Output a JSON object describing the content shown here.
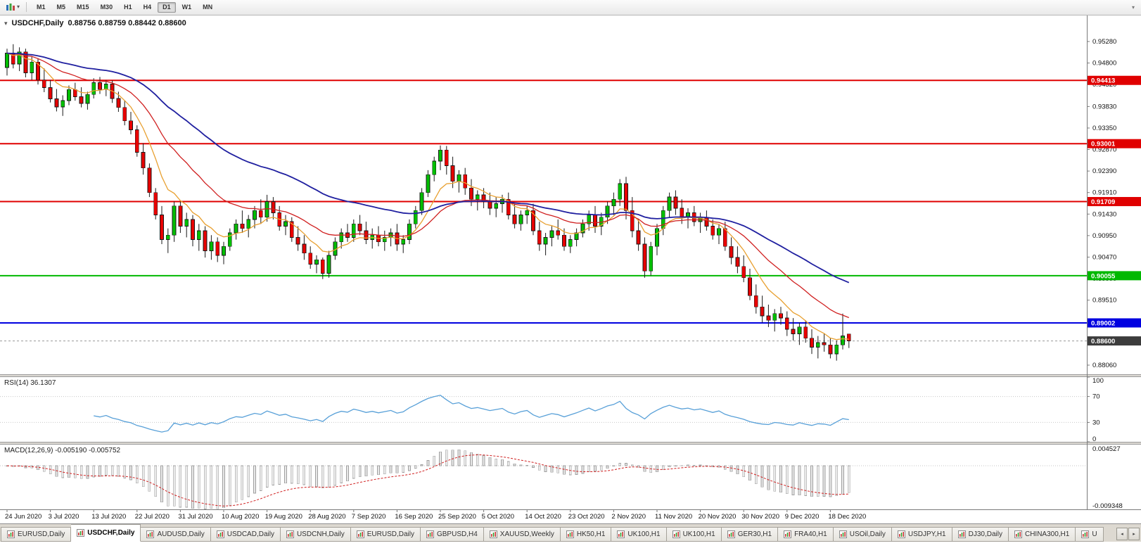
{
  "toolbar": {
    "timeframes": [
      "M1",
      "M5",
      "M15",
      "M30",
      "H1",
      "H4",
      "D1",
      "W1",
      "MN"
    ],
    "active_timeframe": "D1"
  },
  "icons": {
    "one_click": "▾",
    "toolbar_caret": "▾",
    "overflow_caret": "▾",
    "tab_scroll_left": "◂",
    "tab_scroll_right": "▸"
  },
  "chart": {
    "title_symbol": "USDCHF,Daily",
    "title_ohlc": "0.88756 0.88759 0.88442 0.88600",
    "rsi_text": "RSI(14) 36.1307",
    "macd_text": "MACD(12,26,9) -0.005190 -0.005752"
  },
  "chart_data": {
    "type": "candlestick",
    "symbol": "USDCHF",
    "period": "Daily",
    "up_color": "#00BE00",
    "down_color": "#E80000",
    "outline_color": "#1a1a1a",
    "price_axis_labels": [
      "0.95280",
      "0.94800",
      "0.94320",
      "0.93830",
      "0.93350",
      "0.92870",
      "0.92390",
      "0.91910",
      "0.91430",
      "0.90950",
      "0.90470",
      "0.89990",
      "0.89510",
      "0.89030",
      "0.88550",
      "0.88060"
    ],
    "date_ticks": [
      "24 Jun 2020",
      "3 Jul 2020",
      "13 Jul 2020",
      "22 Jul 2020",
      "31 Jul 2020",
      "10 Aug 2020",
      "19 Aug 2020",
      "28 Aug 2020",
      "7 Sep 2020",
      "16 Sep 2020",
      "25 Sep 2020",
      "5 Oct 2020",
      "14 Oct 2020",
      "23 Oct 2020",
      "2 Nov 2020",
      "11 Nov 2020",
      "20 Nov 2020",
      "30 Nov 2020",
      "9 Dec 2020",
      "18 Dec 2020"
    ],
    "candles_per_tick": 7,
    "levels": [
      {
        "price": 0.94413,
        "label": "0.94413",
        "color": "#E00000"
      },
      {
        "price": 0.93001,
        "label": "0.93001",
        "color": "#E00000"
      },
      {
        "price": 0.91709,
        "label": "0.91709",
        "color": "#E00000"
      },
      {
        "price": 0.90055,
        "label": "0.90055",
        "color": "#00B800"
      },
      {
        "price": 0.89002,
        "label": "0.89002",
        "color": "#0000E0"
      }
    ],
    "current_price": {
      "price": 0.886,
      "label": "0.88600",
      "color": "#3C3C3C"
    },
    "moving_averages": [
      {
        "period": 8,
        "color": "#E8A030"
      },
      {
        "period": 20,
        "color": "#D02020"
      },
      {
        "period": 45,
        "color": "#2020A0"
      }
    ],
    "candles": [
      [
        0.947,
        0.9512,
        0.9452,
        0.9502
      ],
      [
        0.9502,
        0.9522,
        0.9468,
        0.9478
      ],
      [
        0.9478,
        0.9515,
        0.9462,
        0.9505
      ],
      [
        0.9505,
        0.9512,
        0.9448,
        0.9458
      ],
      [
        0.9458,
        0.9495,
        0.9442,
        0.9482
      ],
      [
        0.9482,
        0.949,
        0.9432,
        0.9442
      ],
      [
        0.9442,
        0.9468,
        0.9415,
        0.9425
      ],
      [
        0.9425,
        0.9442,
        0.9392,
        0.94
      ],
      [
        0.94,
        0.9422,
        0.9372,
        0.9382
      ],
      [
        0.9382,
        0.9408,
        0.9362,
        0.9396
      ],
      [
        0.9396,
        0.943,
        0.9386,
        0.9421
      ],
      [
        0.9421,
        0.9436,
        0.9396,
        0.9405
      ],
      [
        0.9405,
        0.9426,
        0.9381,
        0.939
      ],
      [
        0.939,
        0.9416,
        0.9376,
        0.941
      ],
      [
        0.941,
        0.9446,
        0.9401,
        0.9436
      ],
      [
        0.9436,
        0.9449,
        0.9411,
        0.9421
      ],
      [
        0.9421,
        0.9442,
        0.9406,
        0.9433
      ],
      [
        0.9433,
        0.9441,
        0.9391,
        0.9401
      ],
      [
        0.9401,
        0.9416,
        0.9371,
        0.9381
      ],
      [
        0.9381,
        0.9396,
        0.9341,
        0.9351
      ],
      [
        0.9351,
        0.9371,
        0.9321,
        0.9331
      ],
      [
        0.9331,
        0.9341,
        0.9271,
        0.9281
      ],
      [
        0.9281,
        0.9301,
        0.9231,
        0.9246
      ],
      [
        0.9246,
        0.9256,
        0.9181,
        0.9191
      ],
      [
        0.9191,
        0.9201,
        0.9131,
        0.9141
      ],
      [
        0.9141,
        0.9161,
        0.9076,
        0.9086
      ],
      [
        0.9086,
        0.9111,
        0.9056,
        0.9096
      ],
      [
        0.9096,
        0.9171,
        0.9081,
        0.9161
      ],
      [
        0.9161,
        0.9171,
        0.9101,
        0.9116
      ],
      [
        0.9116,
        0.9146,
        0.9091,
        0.9131
      ],
      [
        0.9131,
        0.9141,
        0.9071,
        0.9086
      ],
      [
        0.9086,
        0.9121,
        0.9061,
        0.9106
      ],
      [
        0.9106,
        0.9116,
        0.9046,
        0.9061
      ],
      [
        0.9061,
        0.9096,
        0.9041,
        0.9081
      ],
      [
        0.9081,
        0.9091,
        0.9036,
        0.9051
      ],
      [
        0.9051,
        0.9081,
        0.9031,
        0.9071
      ],
      [
        0.9071,
        0.9111,
        0.9061,
        0.9101
      ],
      [
        0.9101,
        0.9131,
        0.9086,
        0.9121
      ],
      [
        0.9121,
        0.9151,
        0.9101,
        0.9111
      ],
      [
        0.9111,
        0.9141,
        0.9091,
        0.9131
      ],
      [
        0.9131,
        0.9161,
        0.9111,
        0.9151
      ],
      [
        0.9151,
        0.9176,
        0.9121,
        0.9136
      ],
      [
        0.9136,
        0.9186,
        0.9126,
        0.9171
      ],
      [
        0.9171,
        0.9181,
        0.9131,
        0.9146
      ],
      [
        0.9146,
        0.9161,
        0.9106,
        0.9116
      ],
      [
        0.9116,
        0.9141,
        0.9096,
        0.9126
      ],
      [
        0.9126,
        0.9136,
        0.9081,
        0.9091
      ],
      [
        0.9091,
        0.9116,
        0.9061,
        0.9076
      ],
      [
        0.9076,
        0.9096,
        0.9041,
        0.9056
      ],
      [
        0.9056,
        0.9071,
        0.9021,
        0.9031
      ],
      [
        0.9031,
        0.9051,
        0.9011,
        0.9041
      ],
      [
        0.9041,
        0.9046,
        0.8998,
        0.9011
      ],
      [
        0.9011,
        0.9061,
        0.9001,
        0.9051
      ],
      [
        0.9051,
        0.9091,
        0.9041,
        0.9081
      ],
      [
        0.9081,
        0.9111,
        0.9066,
        0.9101
      ],
      [
        0.9101,
        0.9121,
        0.9081,
        0.9091
      ],
      [
        0.9091,
        0.9131,
        0.9081,
        0.9121
      ],
      [
        0.9121,
        0.9141,
        0.9096,
        0.9106
      ],
      [
        0.9106,
        0.9126,
        0.9076,
        0.9086
      ],
      [
        0.9086,
        0.9111,
        0.9066,
        0.9096
      ],
      [
        0.9096,
        0.9116,
        0.9071,
        0.9081
      ],
      [
        0.9081,
        0.9106,
        0.9061,
        0.9091
      ],
      [
        0.9091,
        0.9111,
        0.9071,
        0.9101
      ],
      [
        0.9101,
        0.9121,
        0.9061,
        0.9076
      ],
      [
        0.9076,
        0.9096,
        0.9056,
        0.9086
      ],
      [
        0.9086,
        0.9131,
        0.9076,
        0.9121
      ],
      [
        0.9121,
        0.9161,
        0.9111,
        0.9151
      ],
      [
        0.9151,
        0.9201,
        0.9141,
        0.9191
      ],
      [
        0.9191,
        0.9241,
        0.9181,
        0.9231
      ],
      [
        0.9231,
        0.9271,
        0.9216,
        0.9261
      ],
      [
        0.9261,
        0.9296,
        0.9241,
        0.9286
      ],
      [
        0.9286,
        0.9295,
        0.9231,
        0.9251
      ],
      [
        0.9251,
        0.9271,
        0.9201,
        0.9216
      ],
      [
        0.9216,
        0.9241,
        0.9191,
        0.9231
      ],
      [
        0.9231,
        0.9246,
        0.9186,
        0.9201
      ],
      [
        0.9201,
        0.9221,
        0.9161,
        0.9176
      ],
      [
        0.9176,
        0.9196,
        0.9151,
        0.9186
      ],
      [
        0.9186,
        0.9201,
        0.9156,
        0.9171
      ],
      [
        0.9171,
        0.9191,
        0.9141,
        0.9156
      ],
      [
        0.9156,
        0.9181,
        0.9136,
        0.9166
      ],
      [
        0.9166,
        0.9186,
        0.9146,
        0.9176
      ],
      [
        0.9176,
        0.9191,
        0.9131,
        0.9141
      ],
      [
        0.9141,
        0.9166,
        0.9111,
        0.9121
      ],
      [
        0.9121,
        0.9151,
        0.9106,
        0.9141
      ],
      [
        0.9141,
        0.9161,
        0.9121,
        0.9151
      ],
      [
        0.9151,
        0.9166,
        0.9096,
        0.9106
      ],
      [
        0.9106,
        0.9126,
        0.9061,
        0.9076
      ],
      [
        0.9076,
        0.9101,
        0.9051,
        0.9091
      ],
      [
        0.9091,
        0.9116,
        0.9071,
        0.9106
      ],
      [
        0.9106,
        0.9131,
        0.9086,
        0.9096
      ],
      [
        0.9096,
        0.9111,
        0.9061,
        0.9071
      ],
      [
        0.9071,
        0.9096,
        0.9056,
        0.9086
      ],
      [
        0.9086,
        0.9111,
        0.9071,
        0.9101
      ],
      [
        0.9101,
        0.9131,
        0.9091,
        0.9121
      ],
      [
        0.9121,
        0.9151,
        0.9106,
        0.9141
      ],
      [
        0.9141,
        0.9161,
        0.9101,
        0.9116
      ],
      [
        0.9116,
        0.9146,
        0.9096,
        0.9136
      ],
      [
        0.9136,
        0.9171,
        0.9121,
        0.9161
      ],
      [
        0.9161,
        0.9191,
        0.9141,
        0.9176
      ],
      [
        0.9176,
        0.9221,
        0.9161,
        0.9211
      ],
      [
        0.9211,
        0.9226,
        0.9131,
        0.9151
      ],
      [
        0.9151,
        0.9181,
        0.9091,
        0.9106
      ],
      [
        0.9106,
        0.9131,
        0.9061,
        0.9076
      ],
      [
        0.9076,
        0.9091,
        0.9001,
        0.9016
      ],
      [
        0.9016,
        0.9081,
        0.9006,
        0.9071
      ],
      [
        0.9071,
        0.9121,
        0.9051,
        0.9111
      ],
      [
        0.9111,
        0.9161,
        0.9096,
        0.9151
      ],
      [
        0.9151,
        0.9191,
        0.9136,
        0.9181
      ],
      [
        0.9181,
        0.9196,
        0.9141,
        0.9156
      ],
      [
        0.9156,
        0.9176,
        0.9121,
        0.9136
      ],
      [
        0.9136,
        0.9156,
        0.9111,
        0.9146
      ],
      [
        0.9146,
        0.9161,
        0.9116,
        0.9126
      ],
      [
        0.9126,
        0.9146,
        0.9101,
        0.9136
      ],
      [
        0.9136,
        0.9151,
        0.9106,
        0.9116
      ],
      [
        0.9116,
        0.9131,
        0.9086,
        0.9096
      ],
      [
        0.9096,
        0.9121,
        0.9076,
        0.9111
      ],
      [
        0.9111,
        0.9126,
        0.9061,
        0.9071
      ],
      [
        0.9071,
        0.9091,
        0.9031,
        0.9046
      ],
      [
        0.9046,
        0.9071,
        0.9011,
        0.9026
      ],
      [
        0.9026,
        0.9051,
        0.8991,
        0.9001
      ],
      [
        0.9001,
        0.9021,
        0.8951,
        0.8961
      ],
      [
        0.8961,
        0.8986,
        0.8921,
        0.8936
      ],
      [
        0.8936,
        0.8961,
        0.8901,
        0.8916
      ],
      [
        0.8916,
        0.8941,
        0.8891,
        0.8906
      ],
      [
        0.8906,
        0.8931,
        0.8881,
        0.8921
      ],
      [
        0.8921,
        0.8936,
        0.8896,
        0.8911
      ],
      [
        0.8911,
        0.8926,
        0.8871,
        0.8886
      ],
      [
        0.8886,
        0.8911,
        0.8861,
        0.8876
      ],
      [
        0.8876,
        0.8901,
        0.8851,
        0.8891
      ],
      [
        0.8891,
        0.8906,
        0.8856,
        0.8866
      ],
      [
        0.8866,
        0.8886,
        0.8831,
        0.8846
      ],
      [
        0.8846,
        0.8871,
        0.8821,
        0.8856
      ],
      [
        0.8856,
        0.8876,
        0.8836,
        0.8851
      ],
      [
        0.8851,
        0.8866,
        0.8821,
        0.8831
      ],
      [
        0.8831,
        0.8861,
        0.8816,
        0.8851
      ],
      [
        0.8851,
        0.8921,
        0.8841,
        0.8871
      ],
      [
        0.88756,
        0.88759,
        0.88442,
        0.886
      ]
    ],
    "rsi": {
      "period": 14,
      "current": 36.1307,
      "color": "#58A0D8",
      "scale_labels": [
        "100",
        "70",
        "30",
        "0"
      ],
      "level_lines": [
        70,
        30
      ]
    },
    "macd": {
      "params": "12,26,9",
      "current": -0.00519,
      "signal_current": -0.005752,
      "hist_fill": "#E8E8E8",
      "hist_stroke": "#A0A0A0",
      "signal_color": "#D02020",
      "scale_top": "0.004527",
      "scale_bottom": "-0.009348"
    }
  },
  "tabs": {
    "active_index": 1,
    "items": [
      "EURUSD,Daily",
      "USDCHF,Daily",
      "AUDUSD,Daily",
      "USDCAD,Daily",
      "USDCNH,Daily",
      "EURUSD,Daily",
      "GBPUSD,H4",
      "XAUUSD,Weekly",
      "HK50,H1",
      "UK100,H1",
      "UK100,H1",
      "GER30,H1",
      "FRA40,H1",
      "USOil,Daily",
      "USDJPY,H1",
      "DJ30,Daily",
      "CHINA300,H1",
      "U"
    ]
  }
}
